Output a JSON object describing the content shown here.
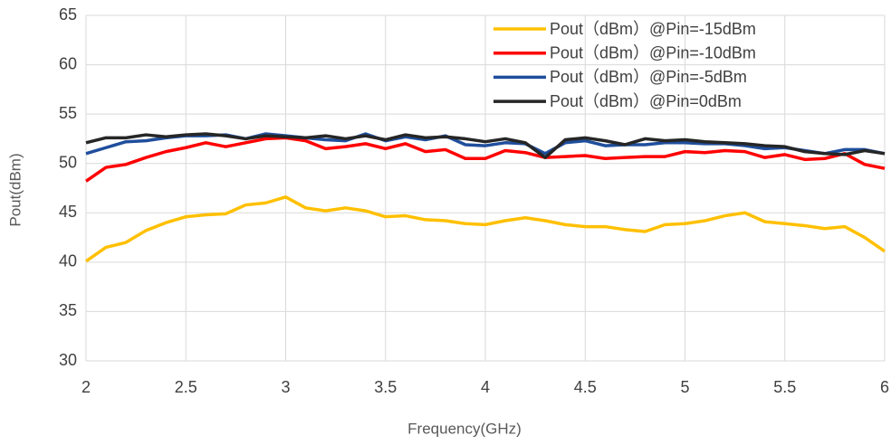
{
  "chart_data": {
    "type": "line",
    "x_label": "Frequency(GHz)",
    "y_label": "Pout(dBm)",
    "x": [
      2,
      2.1,
      2.2,
      2.3,
      2.4,
      2.5,
      2.6,
      2.7,
      2.8,
      2.9,
      3,
      3.1,
      3.2,
      3.3,
      3.4,
      3.5,
      3.6,
      3.7,
      3.8,
      3.9,
      4,
      4.1,
      4.2,
      4.3,
      4.4,
      4.5,
      4.6,
      4.7,
      4.8,
      4.9,
      5,
      5.1,
      5.2,
      5.3,
      5.4,
      5.5,
      5.6,
      5.7,
      5.8,
      5.9,
      6
    ],
    "series": [
      {
        "name": "Pout（dBm）@Pin=-15dBm",
        "color": "#ffc000",
        "values": [
          40.1,
          41.5,
          42,
          43.2,
          44,
          44.6,
          44.8,
          44.9,
          45.8,
          46,
          46.6,
          45.5,
          45.2,
          45.5,
          45.2,
          44.6,
          44.7,
          44.3,
          44.2,
          43.9,
          43.8,
          44.2,
          44.5,
          44.2,
          43.8,
          43.6,
          43.6,
          43.3,
          43.1,
          43.8,
          43.9,
          44.2,
          44.7,
          45,
          44.1,
          43.9,
          43.7,
          43.4,
          43.6,
          42.5,
          41.1
        ]
      },
      {
        "name": "Pout（dBm）@Pin=-10dBm",
        "color": "#ff0000",
        "values": [
          48.2,
          49.6,
          49.9,
          50.6,
          51.2,
          51.6,
          52.1,
          51.7,
          52.1,
          52.5,
          52.6,
          52.3,
          51.5,
          51.7,
          52,
          51.5,
          52,
          51.2,
          51.4,
          50.5,
          50.5,
          51.3,
          51.1,
          50.6,
          50.7,
          50.8,
          50.5,
          50.6,
          50.7,
          50.7,
          51.2,
          51.1,
          51.3,
          51.2,
          50.6,
          50.9,
          50.4,
          50.5,
          51,
          49.9,
          49.5
        ]
      },
      {
        "name": "Pout（dBm）@Pin=-5dBm",
        "color": "#1f4e9c",
        "values": [
          51,
          51.6,
          52.2,
          52.3,
          52.6,
          52.8,
          52.8,
          52.9,
          52.5,
          53,
          52.8,
          52.6,
          52.4,
          52.3,
          53,
          52.3,
          52.7,
          52.4,
          52.8,
          51.9,
          51.8,
          52.1,
          52,
          51,
          52.1,
          52.3,
          51.8,
          51.9,
          51.9,
          52.1,
          52.1,
          52,
          52,
          51.8,
          51.5,
          51.6,
          51.3,
          51,
          51.4,
          51.4,
          51
        ]
      },
      {
        "name": "Pout（dBm）@Pin=0dBm",
        "color": "#262626",
        "values": [
          52.1,
          52.6,
          52.6,
          52.9,
          52.7,
          52.9,
          53,
          52.8,
          52.5,
          52.8,
          52.7,
          52.6,
          52.8,
          52.5,
          52.8,
          52.4,
          52.9,
          52.6,
          52.7,
          52.5,
          52.2,
          52.5,
          52.1,
          50.6,
          52.4,
          52.6,
          52.3,
          51.9,
          52.5,
          52.3,
          52.4,
          52.2,
          52.1,
          52,
          51.8,
          51.7,
          51.2,
          51,
          50.9,
          51.3,
          51
        ]
      }
    ],
    "xlim": [
      2,
      6
    ],
    "xticks": [
      2,
      2.5,
      3,
      3.5,
      4,
      4.5,
      5,
      5.5,
      6
    ],
    "ylim": [
      30,
      65
    ],
    "yticks": [
      30,
      35,
      40,
      45,
      50,
      55,
      60,
      65
    ],
    "grid": true,
    "legend": "top-right"
  }
}
